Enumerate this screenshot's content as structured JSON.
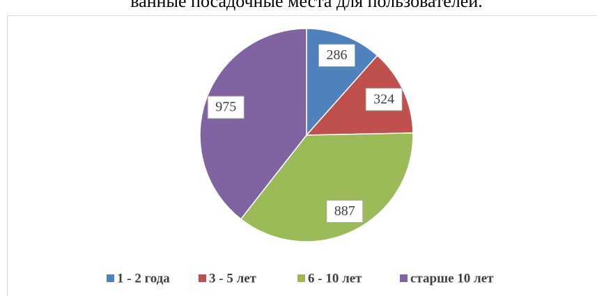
{
  "caption": "ванные посадочные места для пользователей.",
  "chart_data": {
    "type": "pie",
    "categories": [
      "1 - 2 года",
      "3 - 5 лет",
      "6 - 10 лет",
      "старше 10 лет"
    ],
    "values": [
      286,
      324,
      887,
      975
    ],
    "colors": [
      "#4f81bd",
      "#c0504d",
      "#9bbb59",
      "#8064a2"
    ],
    "legend": "bottom"
  }
}
